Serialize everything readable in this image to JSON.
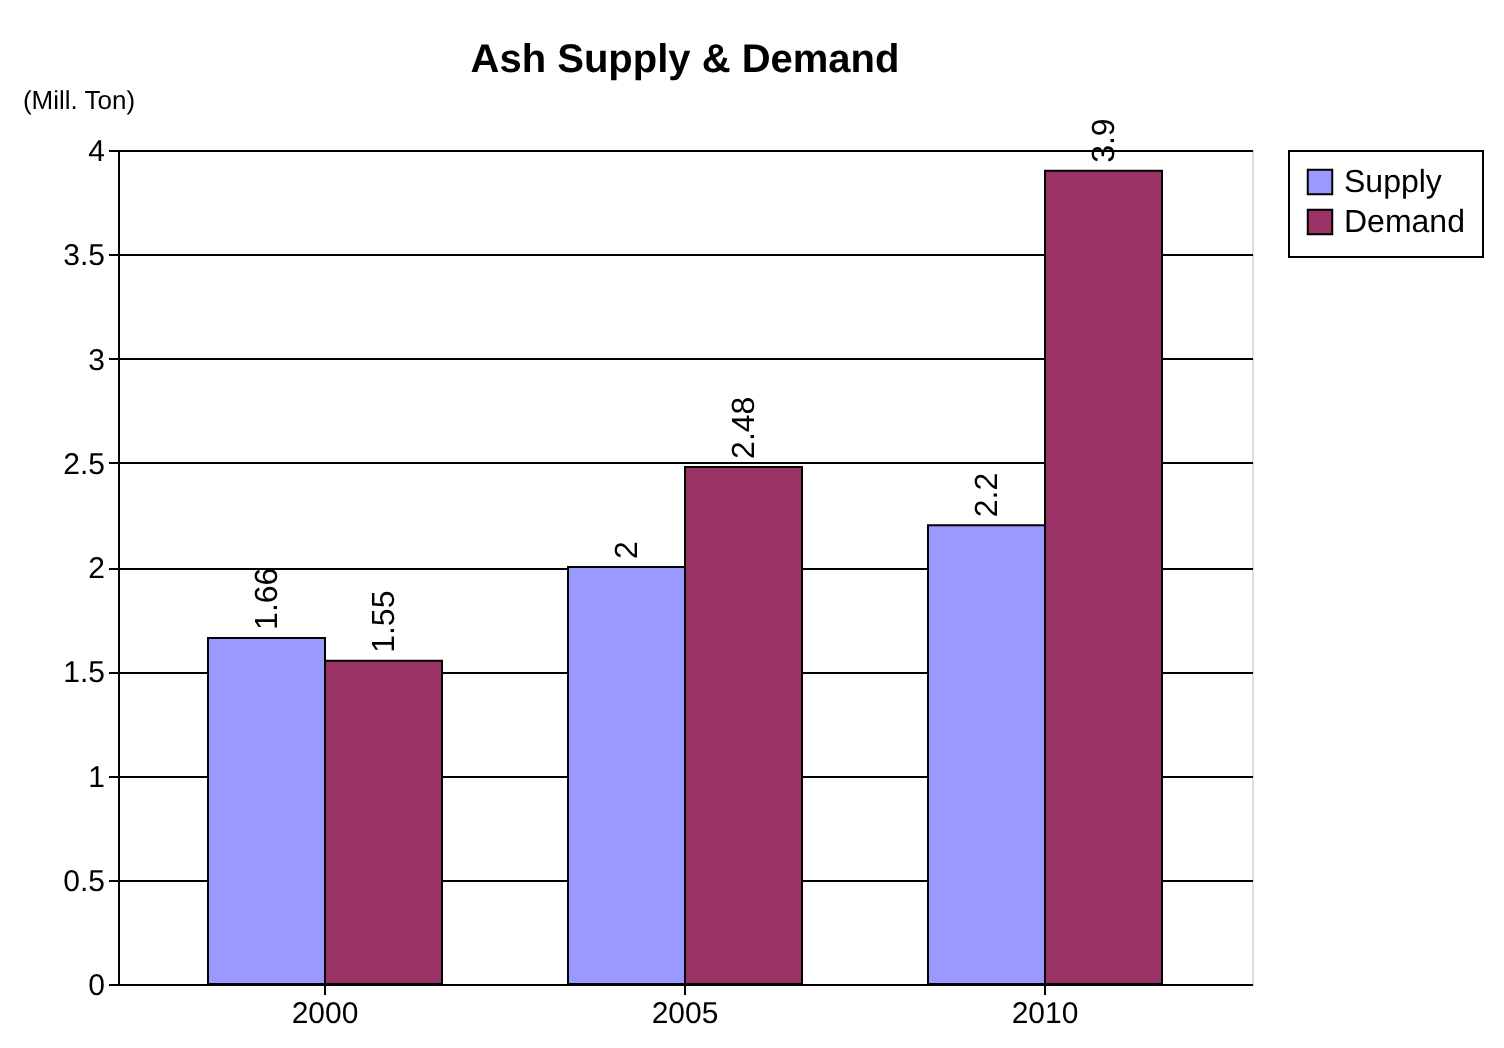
{
  "chart_data": {
    "type": "bar",
    "title": "Ash Supply & Demand",
    "ylabel": "(Mill. Ton)",
    "categories": [
      "2000",
      "2005",
      "2010"
    ],
    "series": [
      {
        "name": "Supply",
        "color": "#9999ff",
        "values": [
          1.66,
          2,
          2.2
        ]
      },
      {
        "name": "Demand",
        "color": "#993366",
        "values": [
          1.55,
          2.48,
          3.9
        ]
      }
    ],
    "ylim": [
      0,
      4
    ],
    "yticks": [
      0,
      0.5,
      1,
      1.5,
      2,
      2.5,
      3,
      3.5,
      4
    ],
    "grid": "y",
    "legend": "right",
    "data_labels": true
  }
}
